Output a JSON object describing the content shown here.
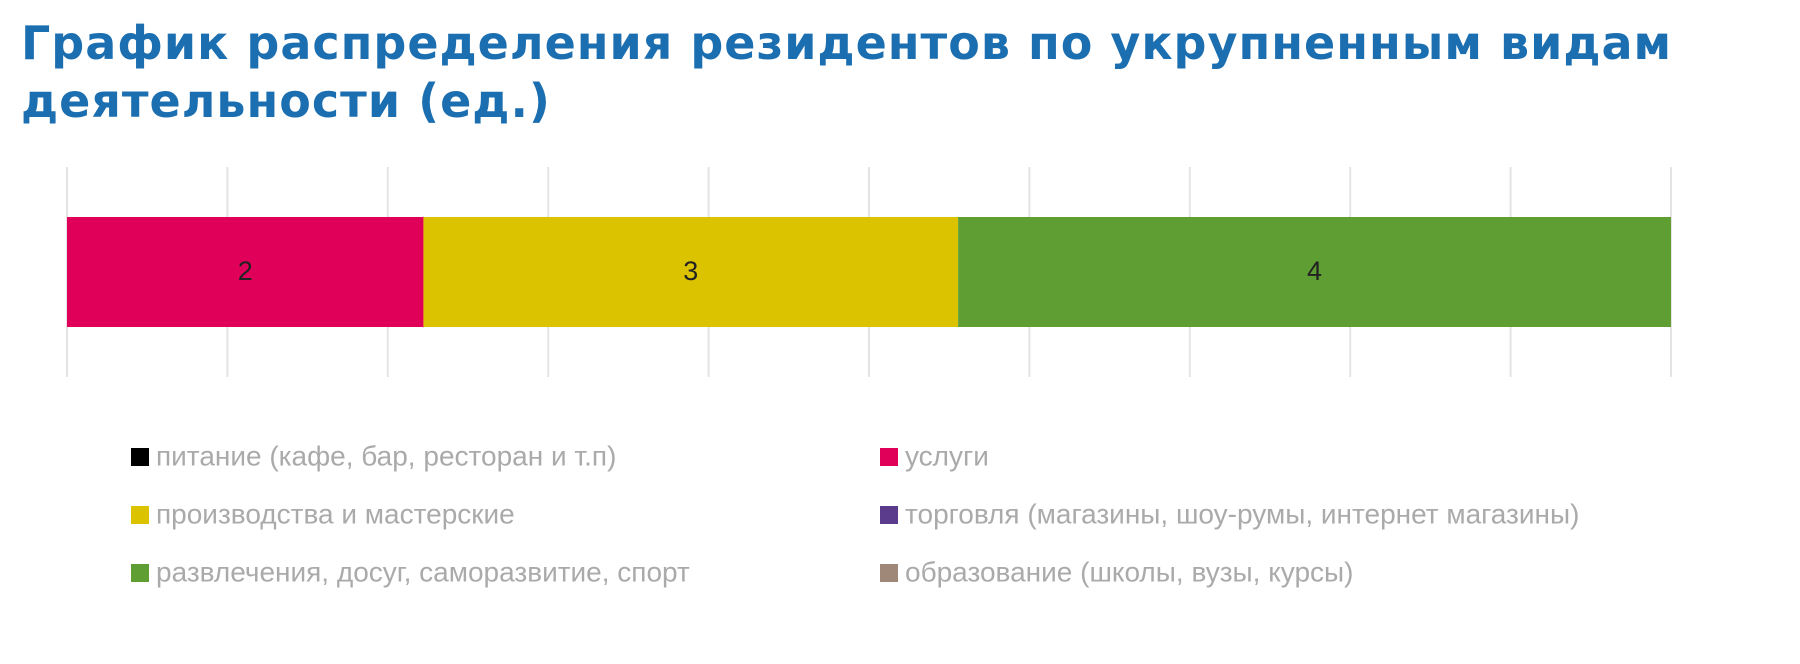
{
  "chart_data": {
    "type": "stacked-bar-horizontal",
    "title": "График распределения резидентов по укрупненным видам деятельности (ед.)",
    "xlim": [
      0,
      9
    ],
    "xticks": [
      0,
      0.9,
      1.8,
      2.7,
      3.6,
      4.5,
      5.4,
      6.3,
      7.2,
      8.1,
      9
    ],
    "grid": true,
    "series": [
      {
        "name": "питание (кафе, бар, ресторан и т.п)",
        "color": "#000000",
        "values": [
          0
        ]
      },
      {
        "name": "услуги",
        "color": "#e0005a",
        "values": [
          2
        ]
      },
      {
        "name": "производства и мастерские",
        "color": "#dcc300",
        "values": [
          3
        ]
      },
      {
        "name": "торговля (магазины, шоу-румы, интернет магазины)",
        "color": "#5b3c8c",
        "values": [
          0
        ]
      },
      {
        "name": "развлечения, досуг, саморазвитие, спорт",
        "color": "#5f9e32",
        "values": [
          4
        ]
      },
      {
        "name": "образование (школы, вузы, курсы)",
        "color": "#a08878",
        "values": [
          0
        ]
      }
    ]
  }
}
